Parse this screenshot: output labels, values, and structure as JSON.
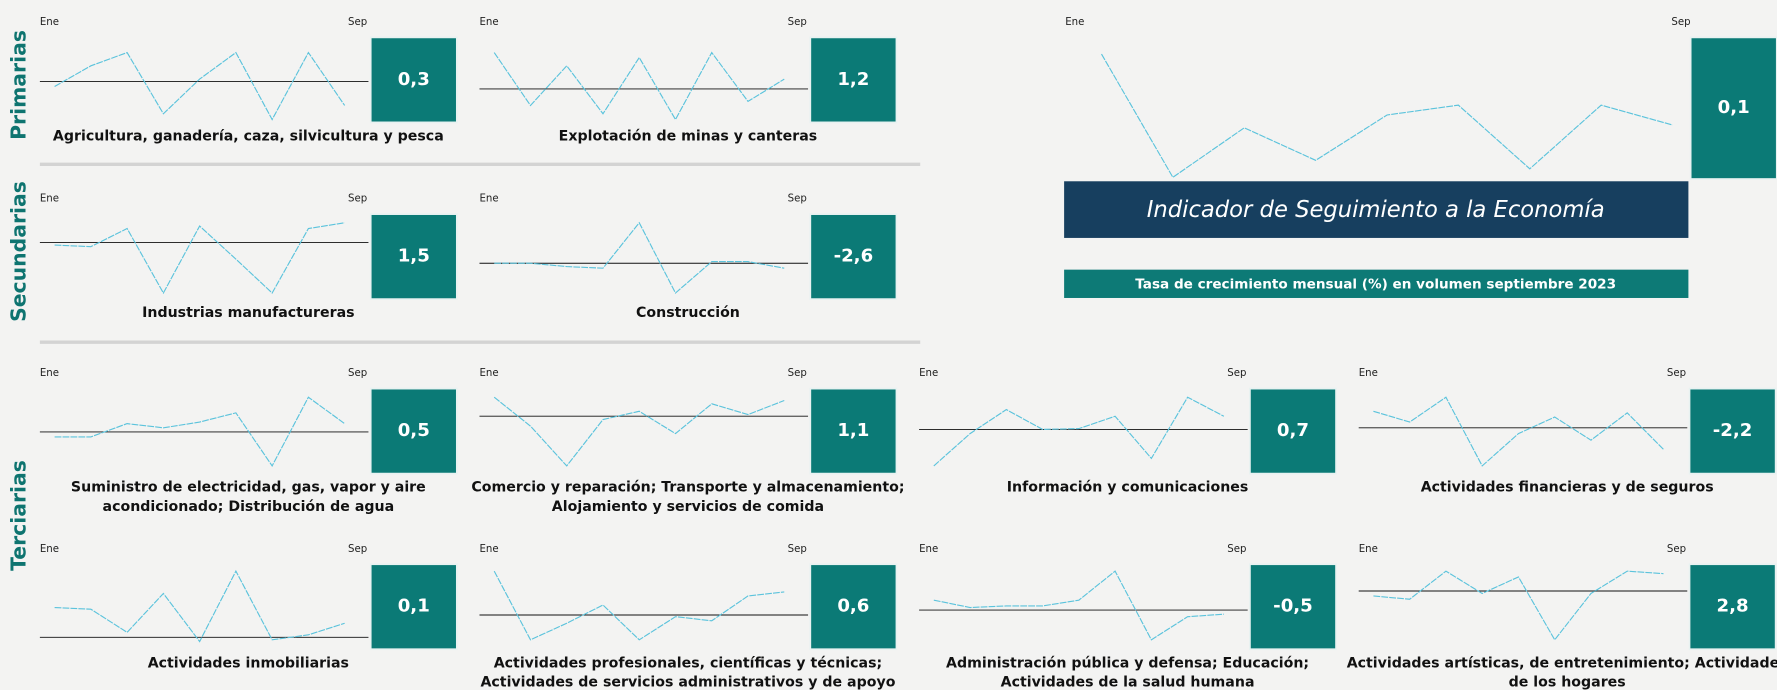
{
  "groups": [
    "Primarias",
    "Secundarias",
    "Terciarias"
  ],
  "header": {
    "title": "Indicador de Seguimiento a la Economía",
    "subtitle": "Tasa de crecimiento mensual (%) en volumen septiembre 2023"
  },
  "chart_data": [
    {
      "type": "line",
      "title": [
        "Agricultura, ganadería, caza, silvicultura y pesca"
      ],
      "categories": [
        "Ene",
        null,
        null,
        null,
        null,
        null,
        null,
        null,
        "Sep"
      ],
      "values": [
        4.2,
        6.7,
        8.3,
        0.9,
        5.1,
        8.3,
        0.2,
        8.3,
        1.9
      ],
      "baseline": 4.8,
      "ylim": [
        0,
        10
      ],
      "color": "#5bc3dc",
      "latest": 0.3,
      "latest_label": "0,3"
    },
    {
      "type": "line",
      "title": [
        "Explotación de minas y canteras"
      ],
      "categories": [
        "Ene",
        null,
        null,
        null,
        null,
        null,
        null,
        null,
        "Sep"
      ],
      "values": [
        8.3,
        1.9,
        6.7,
        0.9,
        7.7,
        0.2,
        8.3,
        2.4,
        5.1
      ],
      "baseline": 3.9,
      "ylim": [
        0,
        10
      ],
      "color": "#5bc3dc",
      "latest": 1.2,
      "latest_label": "1,2"
    },
    {
      "type": "line",
      "title": [],
      "categories": [
        "Ene",
        null,
        null,
        null,
        null,
        null,
        null,
        null,
        "Sep"
      ],
      "values": [
        8.9,
        0.2,
        3.7,
        1.4,
        4.6,
        5.3,
        0.8,
        5.3,
        3.9
      ],
      "ylim": [
        0,
        10
      ],
      "color": "#5bc3dc",
      "latest": 0.1,
      "latest_label": "0,1"
    },
    {
      "type": "line",
      "title": [
        "Industrias manufactureras"
      ],
      "categories": [
        "Ene",
        null,
        null,
        null,
        null,
        null,
        null,
        null,
        "Sep"
      ],
      "values": [
        6.4,
        6.2,
        8.4,
        0.6,
        8.7,
        4.7,
        0.6,
        8.4,
        9.1
      ],
      "baseline": 6.7,
      "ylim": [
        0,
        10
      ],
      "color": "#5bc3dc",
      "latest": 1.5,
      "latest_label": "1,5"
    },
    {
      "type": "line",
      "title": [
        "Construcción"
      ],
      "categories": [
        "Ene",
        null,
        null,
        null,
        null,
        null,
        null,
        null,
        "Sep"
      ],
      "values": [
        4.2,
        4.2,
        3.8,
        3.6,
        9.1,
        0.6,
        4.4,
        4.4,
        3.6
      ],
      "baseline": 4.2,
      "ylim": [
        0,
        10
      ],
      "color": "#5bc3dc",
      "latest": -2.6,
      "latest_label": "-2,6"
    },
    {
      "type": "line",
      "title": [
        "Suministro de electricidad, gas, vapor y aire",
        "acondicionado; Distribución de agua"
      ],
      "categories": [
        "Ene",
        null,
        null,
        null,
        null,
        null,
        null,
        null,
        "Sep"
      ],
      "values": [
        4.3,
        4.3,
        5.9,
        5.4,
        6.1,
        7.2,
        0.8,
        9.1,
        5.9
      ],
      "baseline": 4.9,
      "ylim": [
        0,
        10
      ],
      "color": "#5bc3dc",
      "latest": 0.5,
      "latest_label": "0,5"
    },
    {
      "type": "line",
      "title": [
        "Comercio y reparación; Transporte y almacenamiento;",
        "Alojamiento y servicios de comida"
      ],
      "categories": [
        "Ene",
        null,
        null,
        null,
        null,
        null,
        null,
        null,
        "Sep"
      ],
      "values": [
        9.1,
        5.6,
        0.8,
        6.4,
        7.4,
        4.7,
        8.3,
        7.0,
        8.7
      ],
      "baseline": 6.8,
      "ylim": [
        0,
        10
      ],
      "color": "#5bc3dc",
      "latest": 1.1,
      "latest_label": "1,1"
    },
    {
      "type": "line",
      "title": [
        "Información y comunicaciones"
      ],
      "categories": [
        "Ene",
        null,
        null,
        null,
        null,
        null,
        null,
        null,
        "Sep"
      ],
      "values": [
        0.8,
        4.7,
        7.6,
        5.2,
        5.3,
        6.8,
        1.7,
        9.1,
        6.8
      ],
      "baseline": 5.2,
      "ylim": [
        0,
        10
      ],
      "color": "#5bc3dc",
      "latest": 0.7,
      "latest_label": "0,7"
    },
    {
      "type": "line",
      "title": [
        "Actividades financieras y de seguros"
      ],
      "categories": [
        "Ene",
        null,
        null,
        null,
        null,
        null,
        null,
        null,
        "Sep"
      ],
      "values": [
        7.4,
        6.1,
        9.1,
        0.8,
        4.7,
        6.7,
        3.9,
        7.2,
        2.8
      ],
      "baseline": 5.4,
      "ylim": [
        0,
        10
      ],
      "color": "#5bc3dc",
      "latest": -2.2,
      "latest_label": "-2,2"
    },
    {
      "type": "line",
      "title": [
        "Actividades inmobiliarias"
      ],
      "categories": [
        "Ene",
        null,
        null,
        null,
        null,
        null,
        null,
        null,
        "Sep"
      ],
      "values": [
        4.9,
        4.7,
        1.9,
        6.6,
        0.8,
        9.3,
        1.0,
        1.6,
        3.0
      ],
      "baseline": 1.3,
      "ylim": [
        0,
        10
      ],
      "color": "#5bc3dc",
      "latest": 0.1,
      "latest_label": "0,1"
    },
    {
      "type": "line",
      "title": [
        "Actividades profesionales, científicas y técnicas;",
        "Actividades de servicios administrativos y de apoyo"
      ],
      "categories": [
        "Ene",
        null,
        null,
        null,
        null,
        null,
        null,
        null,
        "Sep"
      ],
      "values": [
        9.3,
        1.0,
        3.0,
        5.2,
        1.0,
        3.8,
        3.3,
        6.3,
        6.8
      ],
      "baseline": 4.0,
      "ylim": [
        0,
        10
      ],
      "color": "#5bc3dc",
      "latest": 0.6,
      "latest_label": "0,6"
    },
    {
      "type": "line",
      "title": [
        "Administración pública y defensa; Educación;",
        "Actividades de la salud humana"
      ],
      "categories": [
        "Ene",
        null,
        null,
        null,
        null,
        null,
        null,
        null,
        "Sep"
      ],
      "values": [
        5.8,
        4.9,
        5.1,
        5.1,
        5.8,
        9.3,
        1.0,
        3.8,
        4.1
      ],
      "baseline": 4.6,
      "ylim": [
        0,
        10
      ],
      "color": "#5bc3dc",
      "latest": -0.5,
      "latest_label": "-0,5"
    },
    {
      "type": "line",
      "title": [
        "Actividades artísticas, de entretenimiento; Actividades",
        "de los hogares"
      ],
      "categories": [
        "Ene",
        null,
        null,
        null,
        null,
        null,
        null,
        null,
        "Sep"
      ],
      "values": [
        6.3,
        5.9,
        9.3,
        6.6,
        8.6,
        1.0,
        6.6,
        9.3,
        9.0
      ],
      "baseline": 6.9,
      "ylim": [
        0,
        10
      ],
      "color": "#5bc3dc",
      "latest": 2.8,
      "latest_label": "2,8"
    }
  ]
}
